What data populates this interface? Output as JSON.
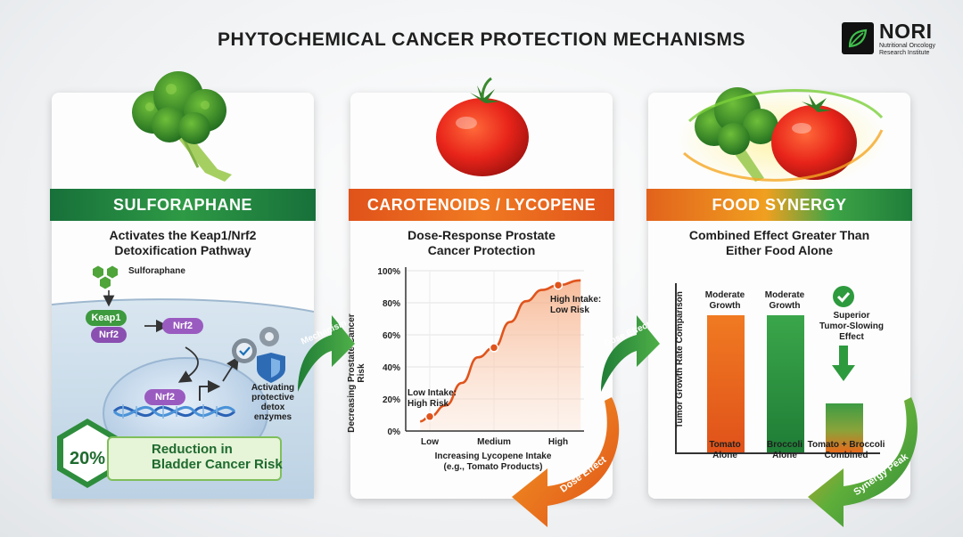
{
  "title": "PHYTOCHEMICAL CANCER PROTECTION MECHANISMS",
  "logo": {
    "name": "NORI",
    "subtitle_line1": "Nutritional Oncology",
    "subtitle_line2": "Research Institute"
  },
  "panel1": {
    "banner": "SULFORAPHANE",
    "subtitle_line1": "Activates the Keap1/Nrf2",
    "subtitle_line2": "Detoxification Pathway",
    "sulforaphane_label": "Sulforaphane",
    "keap1": "Keap1",
    "nrf2_bound": "Nrf2",
    "nrf2_free": "Nrf2",
    "nrf2_nucleus": "Nrf2",
    "enzymes_line1": "Activating",
    "enzymes_line2": "protective",
    "enzymes_line3": "detox",
    "enzymes_line4": "enzymes",
    "stat_value": "20%",
    "stat_line1": "Reduction in",
    "stat_line2": "Bladder Cancer Risk"
  },
  "arrows": {
    "mechanism": "Mechanism",
    "dose_effect_top": "Dose Effect",
    "dose_effect_bottom": "Dose Effect",
    "synergy_peak": "Synergy Peak"
  },
  "panel2": {
    "banner": "CAROTENOIDS / LYCOPENE",
    "subtitle_line1": "Dose-Response Prostate",
    "subtitle_line2": "Cancer Protection",
    "chart_data": {
      "type": "line",
      "ylabel": "Decreasing Prostate Cancer Risk",
      "xlabel_line1": "Increasing Lycopene Intake",
      "xlabel_line2": "(e.g., Tomato Products)",
      "y_ticks": [
        "100%",
        "80%",
        "60%",
        "40%",
        "20%",
        "0%"
      ],
      "categories": [
        "Low",
        "Medium",
        "High"
      ],
      "ylim": [
        0,
        100
      ],
      "curve": [
        {
          "x": -0.15,
          "y": 6
        },
        {
          "x": 0,
          "y": 9
        },
        {
          "x": 0.25,
          "y": 16
        },
        {
          "x": 0.5,
          "y": 30
        },
        {
          "x": 0.75,
          "y": 46
        },
        {
          "x": 1,
          "y": 52
        },
        {
          "x": 1.25,
          "y": 68
        },
        {
          "x": 1.5,
          "y": 81
        },
        {
          "x": 1.75,
          "y": 88
        },
        {
          "x": 2,
          "y": 91
        },
        {
          "x": 2.35,
          "y": 94
        }
      ],
      "points": [
        {
          "x": 0,
          "y": 9
        },
        {
          "x": 1,
          "y": 52
        },
        {
          "x": 2,
          "y": 91
        }
      ],
      "annotation_low_line1": "Low Intake:",
      "annotation_low_line2": "High Risk",
      "annotation_high_line1": "High Intake:",
      "annotation_high_line2": "Low Risk"
    }
  },
  "panel3": {
    "banner": "FOOD SYNERGY",
    "subtitle_line1": "Combined Effect Greater Than",
    "subtitle_line2": "Either Food Alone",
    "chart_data": {
      "type": "bar",
      "ylabel": "Tumor Growth Rate Comparison",
      "categories": [
        {
          "line1": "Tomato",
          "line2": "Alone"
        },
        {
          "line1": "Broccoli",
          "line2": "Alone"
        },
        {
          "line1": "Tomato + Broccoli",
          "line2": "Combined"
        }
      ],
      "values": [
        100,
        100,
        36
      ],
      "bar_labels": [
        {
          "line1": "Moderate",
          "line2": "Growth",
          "line3": ""
        },
        {
          "line1": "Moderate",
          "line2": "Growth",
          "line3": ""
        },
        {
          "line1": "Superior",
          "line2": "Tumor-Slowing",
          "line3": "Effect"
        }
      ],
      "colors": [
        "#ec6a1c",
        "#2e9a45",
        "#3d9c44"
      ]
    }
  }
}
